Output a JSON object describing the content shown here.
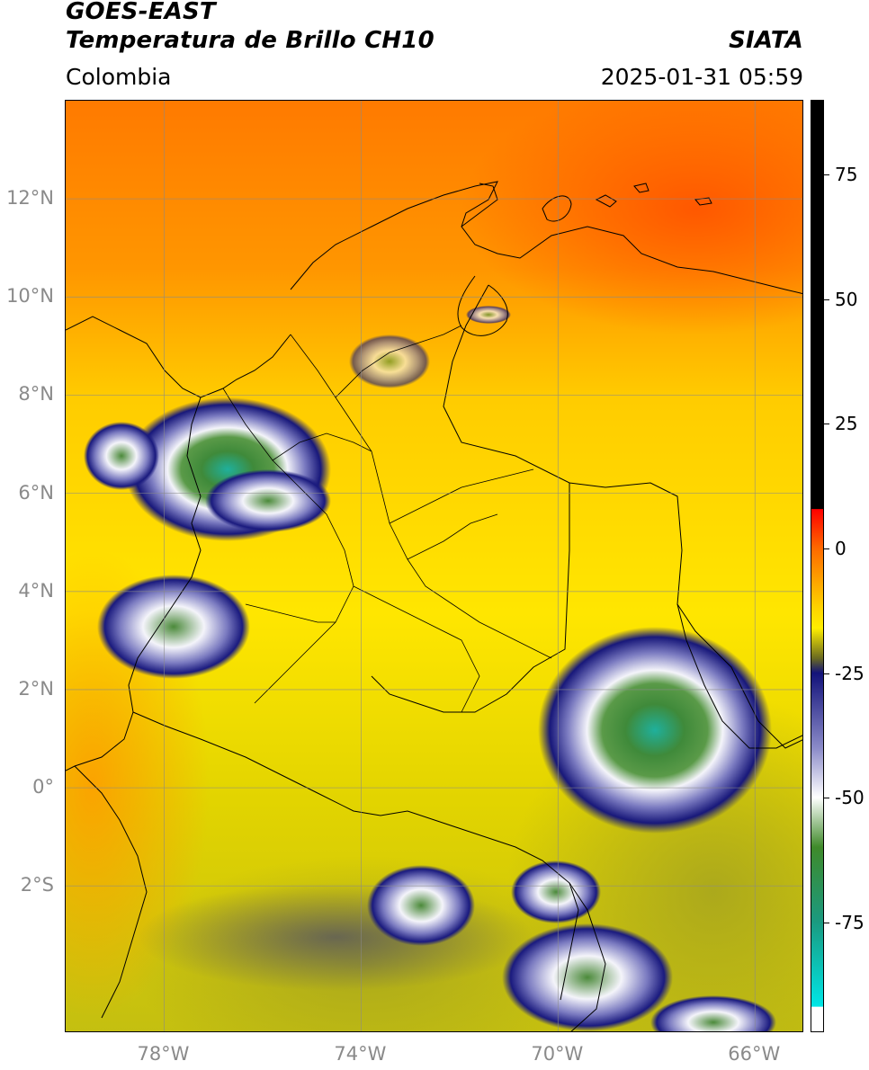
{
  "header": {
    "title_line1": "GOES-EAST",
    "title_line2": "Temperatura de Brillo CH10",
    "agency": "SIATA",
    "region": "Colombia",
    "timestamp": "2025-01-31 05:59"
  },
  "map": {
    "projection": "lat-lon",
    "lon_range": [
      -80,
      -65
    ],
    "lat_range": [
      -5,
      14
    ],
    "latitude_labels": [
      {
        "lat": 12,
        "text": "12°N"
      },
      {
        "lat": 10,
        "text": "10°N"
      },
      {
        "lat": 8,
        "text": "8°N"
      },
      {
        "lat": 6,
        "text": "6°N"
      },
      {
        "lat": 4,
        "text": "4°N"
      },
      {
        "lat": 2,
        "text": "2°N"
      },
      {
        "lat": 0,
        "text": "0°"
      },
      {
        "lat": -2,
        "text": "2°S"
      }
    ],
    "longitude_labels": [
      {
        "lon": -78,
        "text": "78°W"
      },
      {
        "lon": -74,
        "text": "74°W"
      },
      {
        "lon": -70,
        "text": "70°W"
      },
      {
        "lon": -66,
        "text": "66°W"
      }
    ],
    "gridlines": true,
    "colors": {
      "warm_sea": "#ff8a00",
      "warm_hot": "#ff5a00",
      "land_mid": "#ffd500",
      "cool": "#c9c400",
      "olive": "#a6a81a",
      "cloud_blue": "#1b1a7a",
      "cloud_white": "#f2f2f8",
      "cloud_green": "#4b8a3a",
      "cloud_teal": "#1fb5a0"
    }
  },
  "colorbar": {
    "unit_range": [
      -97,
      90
    ],
    "ticks": [
      {
        "value": 75,
        "text": "75"
      },
      {
        "value": 50,
        "text": "50"
      },
      {
        "value": 25,
        "text": "25"
      },
      {
        "value": 0,
        "text": "0"
      },
      {
        "value": -25,
        "text": "-25"
      },
      {
        "value": -50,
        "text": "-50"
      },
      {
        "value": -75,
        "text": "-75"
      }
    ],
    "stops": [
      {
        "value": 90,
        "color": "#000000"
      },
      {
        "value": 8,
        "color": "#000000"
      },
      {
        "value": 7.9,
        "color": "#ff0000"
      },
      {
        "value": 0,
        "color": "#ff6a00"
      },
      {
        "value": -12,
        "color": "#ffd400"
      },
      {
        "value": -16,
        "color": "#ffee00"
      },
      {
        "value": -22,
        "color": "#6b6b20"
      },
      {
        "value": -25,
        "color": "#12127a"
      },
      {
        "value": -40,
        "color": "#8a8ac8"
      },
      {
        "value": -50,
        "color": "#ffffff"
      },
      {
        "value": -60,
        "color": "#3f8a2a"
      },
      {
        "value": -75,
        "color": "#1a9a80"
      },
      {
        "value": -92,
        "color": "#00e6e6"
      },
      {
        "value": -92.1,
        "color": "#ffffff"
      },
      {
        "value": -97,
        "color": "#ffffff"
      }
    ]
  }
}
